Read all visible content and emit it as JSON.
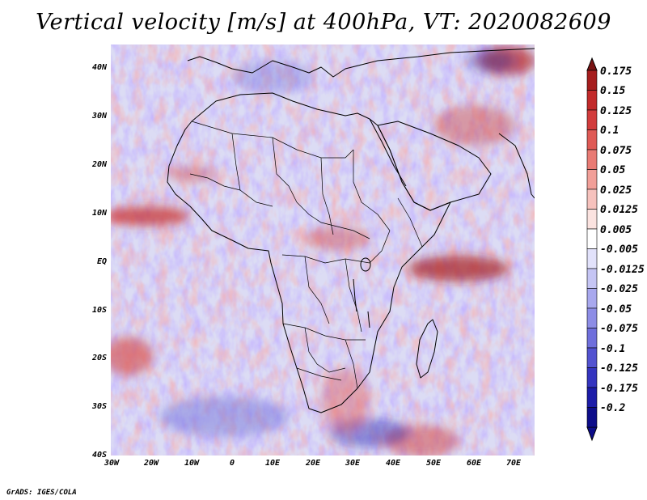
{
  "title": "Vertical velocity [m/s] at 400hPa, VT: 2020082609",
  "credit": "GrADS: IGES/COLA",
  "map": {
    "lat_labels": [
      "40N",
      "30N",
      "20N",
      "10N",
      "EQ",
      "10S",
      "20S",
      "30S",
      "40S"
    ],
    "lon_labels": [
      "30W",
      "20W",
      "10W",
      "0",
      "10E",
      "20E",
      "30E",
      "40E",
      "50E",
      "60E",
      "70E"
    ],
    "lat_range": [
      -40,
      45
    ],
    "lon_range": [
      -30,
      75
    ]
  },
  "colorbar": {
    "labels": [
      "0.175",
      "0.15",
      "0.125",
      "0.1",
      "0.075",
      "0.05",
      "0.025",
      "0.0125",
      "0.005",
      "-0.005",
      "-0.0125",
      "-0.025",
      "-0.05",
      "-0.075",
      "-0.1",
      "-0.125",
      "-0.175",
      "-0.2"
    ],
    "colors": [
      "#7a1414",
      "#a61d1d",
      "#c22a2a",
      "#d23c3c",
      "#df5a55",
      "#e97b74",
      "#f19f98",
      "#f6c2bd",
      "#fbe3e0",
      "#ffffff",
      "#e2e2fb",
      "#c5c5f4",
      "#a8a8ee",
      "#8d8de6",
      "#6f6fdc",
      "#5252d0",
      "#3434bf",
      "#1c1ca8",
      "#0d0d8a"
    ]
  }
}
